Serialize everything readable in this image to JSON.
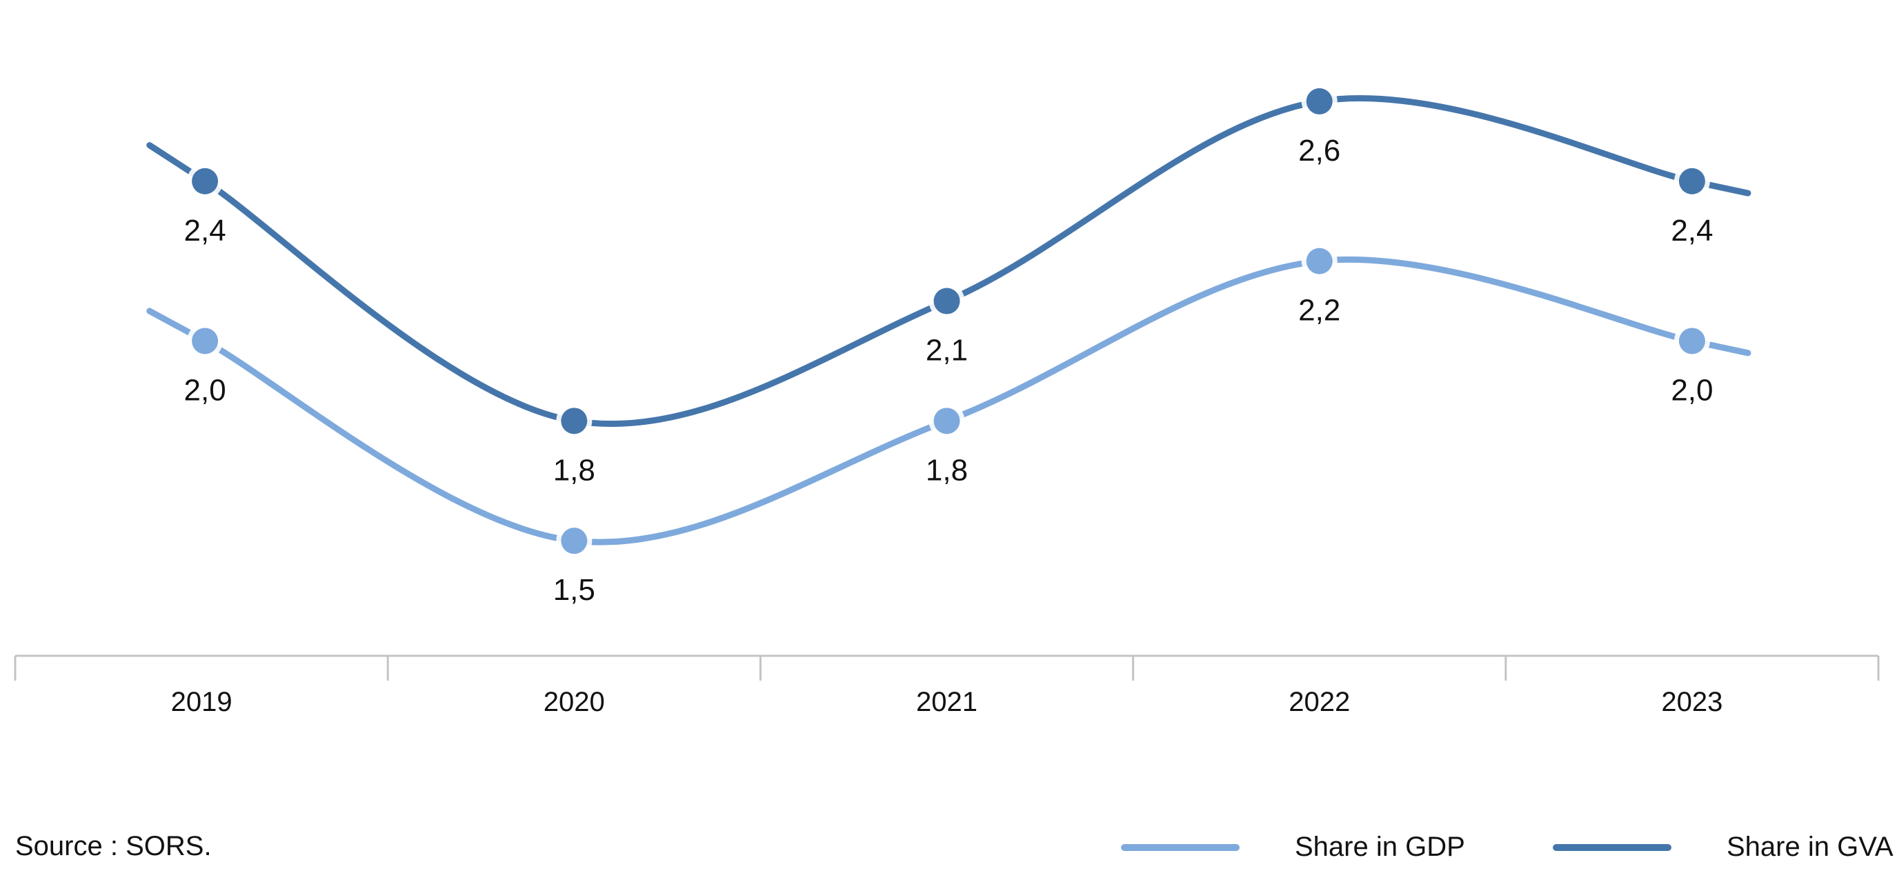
{
  "chart_data": {
    "type": "line",
    "categories": [
      "2019",
      "2020",
      "2021",
      "2022",
      "2023"
    ],
    "series": [
      {
        "name": "Share in GDP",
        "values": [
          2.0,
          1.5,
          1.8,
          2.2,
          2.0
        ],
        "labels": [
          "2,0",
          "1,5",
          "1,8",
          "2,2",
          "2,0"
        ],
        "color": "#7ea9dc"
      },
      {
        "name": "Share in GVA",
        "values": [
          2.4,
          1.8,
          2.1,
          2.6,
          2.4
        ],
        "labels": [
          "2,4",
          "1,8",
          "2,1",
          "2,6",
          "2,4"
        ],
        "color": "#4576ab"
      }
    ],
    "ylim": [
      1.3,
      2.75
    ],
    "smooth": true,
    "grid": false,
    "legend_position": "bottom-right",
    "axis_color": "#c4c4c4"
  },
  "source": "Source : SORS."
}
